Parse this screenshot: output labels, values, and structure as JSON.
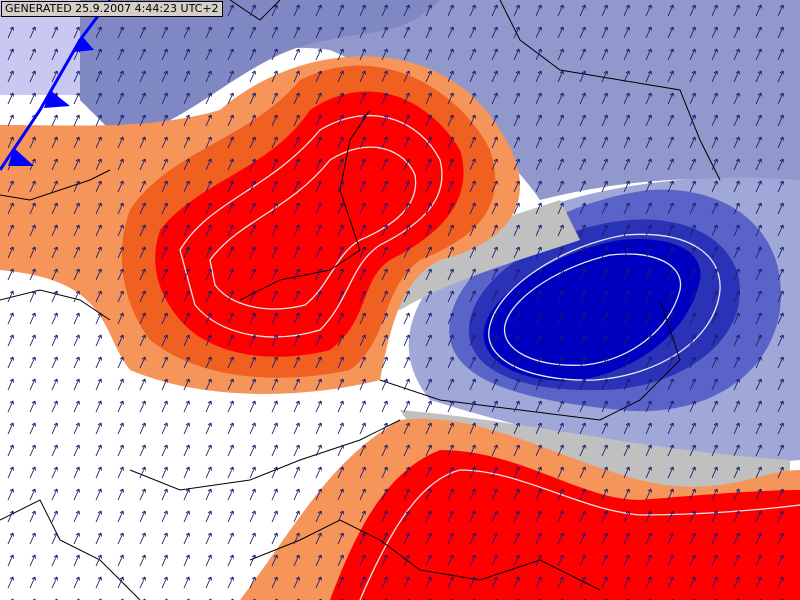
{
  "header": {
    "generated": "GENERATED 25.9.2007 4:44:23 UTC+2"
  }
}
